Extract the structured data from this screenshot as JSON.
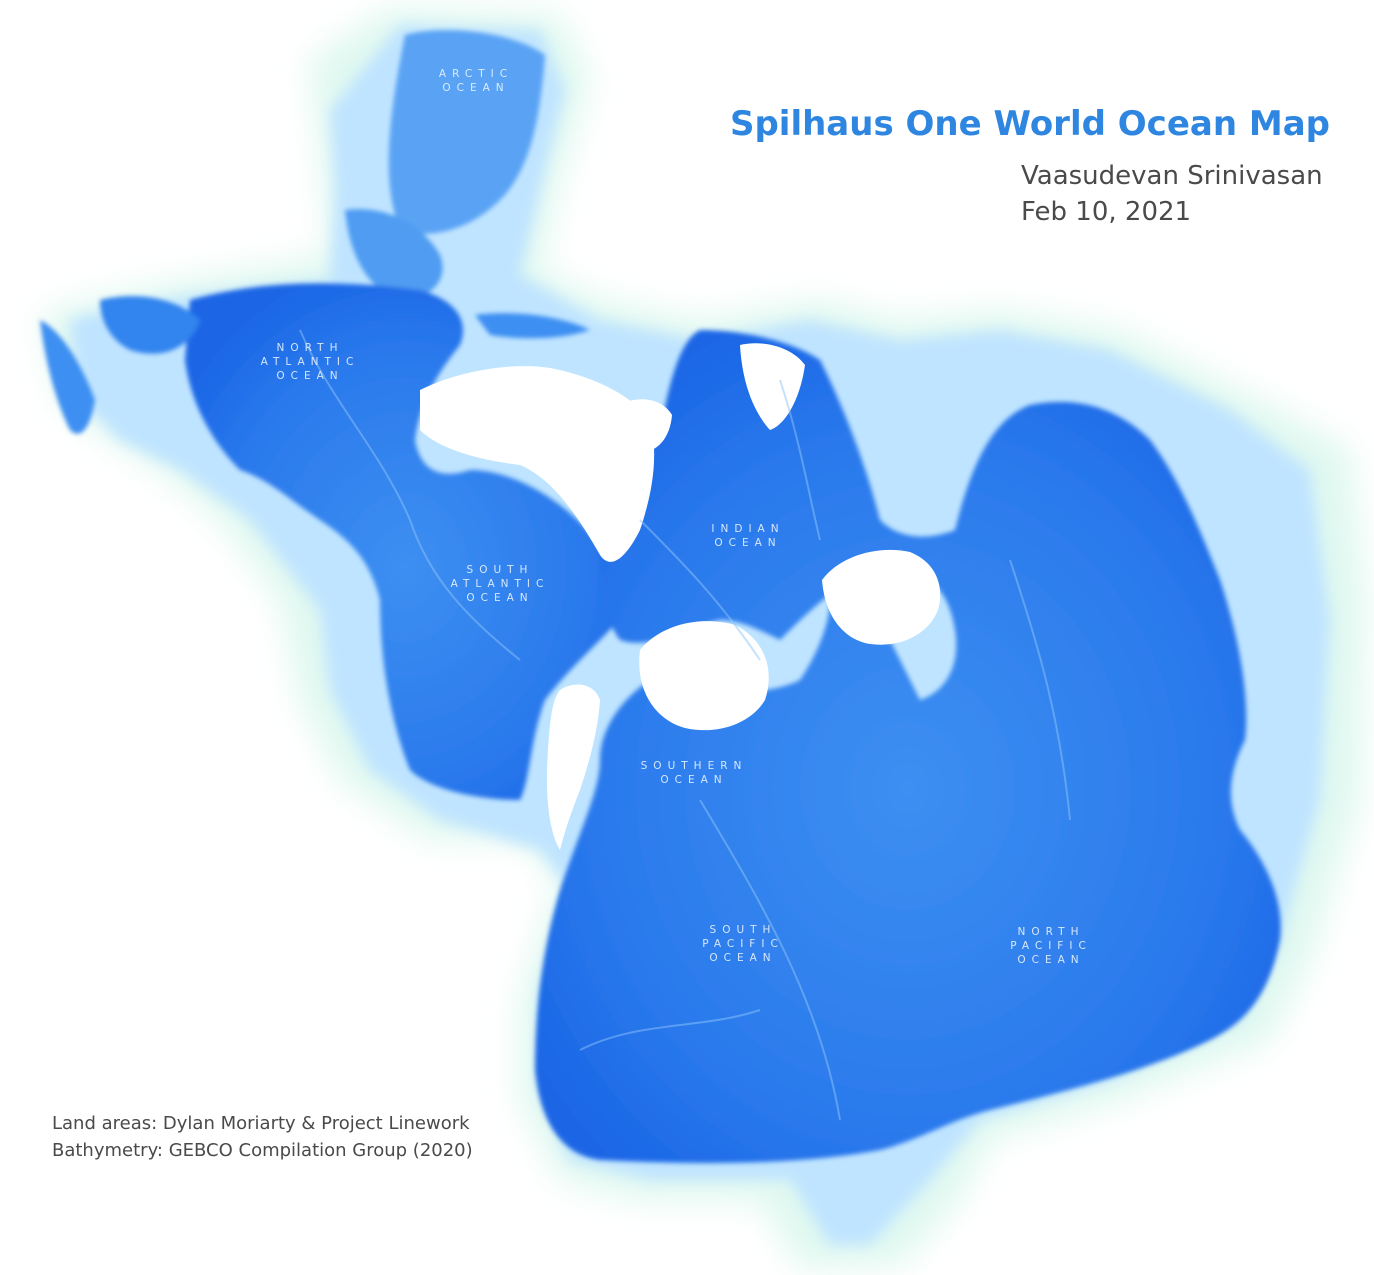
{
  "map": {
    "title": "Spilhaus One World Ocean Map",
    "author": "Vaasudevan Srinivasan",
    "date": "Feb 10, 2021",
    "credits": {
      "land": "Land areas: Dylan Moriarty & Project Linework",
      "bathymetry": "Bathymetry: GEBCO Compilation Group (2020)"
    },
    "ocean_labels": {
      "arctic": [
        "ARCTIC",
        "OCEAN"
      ],
      "north_atlantic": [
        "NORTH",
        "ATLANTIC",
        "OCEAN"
      ],
      "south_atlantic": [
        "SOUTH",
        "ATLANTIC",
        "OCEAN"
      ],
      "indian": [
        "INDIAN",
        "OCEAN"
      ],
      "southern": [
        "SOUTHERN",
        "OCEAN"
      ],
      "south_pacific": [
        "SOUTH",
        "PACIFIC",
        "OCEAN"
      ],
      "north_pacific": [
        "NORTH",
        "PACIFIC",
        "OCEAN"
      ]
    },
    "colors": {
      "deep_ocean": "#1a66e6",
      "mid_ocean": "#3c8cf2",
      "shelf": "#bfe4ff",
      "coastal_glow": "#dff8f0",
      "land": "#ffffff",
      "title": "#2e86e0",
      "text": "#4a4a4a"
    }
  }
}
